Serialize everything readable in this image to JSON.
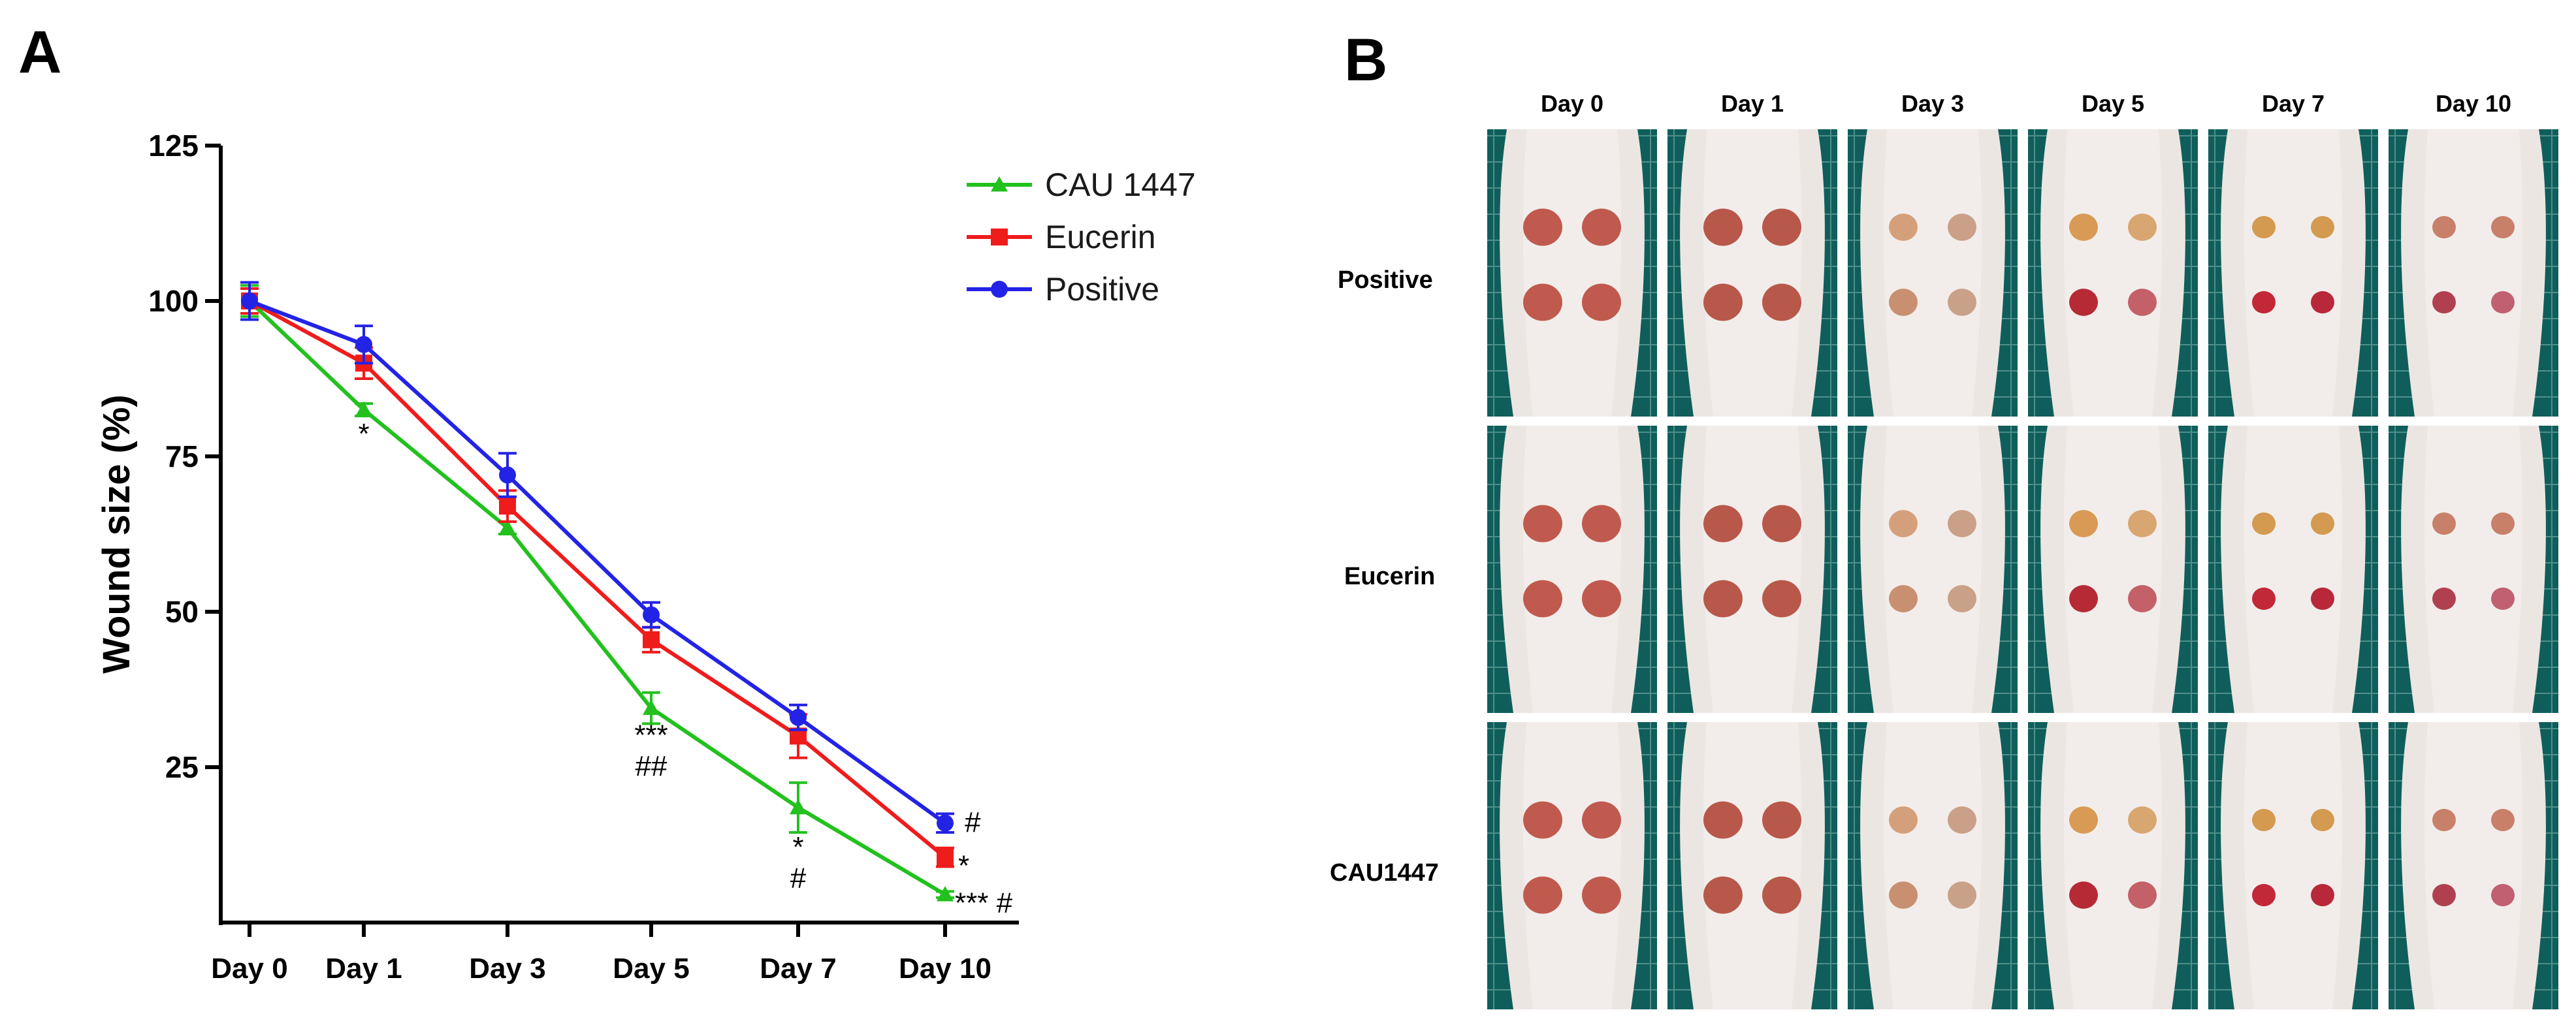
{
  "panel_a_label": "A",
  "panel_b_label": "B",
  "chart_data": {
    "type": "line",
    "title": "",
    "xlabel": "",
    "ylabel": "Wound size (%)",
    "categories": [
      "Day 0",
      "Day 1",
      "Day 3",
      "Day 5",
      "Day 7",
      "Day 10"
    ],
    "ylim": [
      0,
      125
    ],
    "yticks": [
      25,
      50,
      75,
      100,
      125
    ],
    "legend_position": "top-right",
    "series": [
      {
        "name": "CAU 1447",
        "color": "#22c11e",
        "marker": "triangle",
        "values": [
          100,
          82.5,
          63.5,
          34.5,
          18.5,
          4.5
        ],
        "errors": [
          2.5,
          1.0,
          1.0,
          2.5,
          4.0,
          0.5
        ]
      },
      {
        "name": "Eucerin",
        "color": "#ef1c1c",
        "marker": "square",
        "values": [
          100,
          90,
          67,
          45.5,
          30,
          10.5
        ],
        "errors": [
          2.0,
          2.5,
          2.5,
          2.0,
          3.5,
          1.5
        ]
      },
      {
        "name": "Positive",
        "color": "#2323e6",
        "marker": "circle",
        "values": [
          100,
          93,
          72,
          49.5,
          33,
          16
        ],
        "errors": [
          3.0,
          3.0,
          3.5,
          2.0,
          2.0,
          1.5
        ]
      }
    ],
    "annotations": [
      {
        "category": "Day 1",
        "y": 79,
        "text": "*",
        "anchor": "middle"
      },
      {
        "category": "Day 5",
        "y": 30.5,
        "text": "***",
        "anchor": "middle"
      },
      {
        "category": "Day 5",
        "y": 25.5,
        "text": "##",
        "anchor": "middle"
      },
      {
        "category": "Day 7",
        "y": 12.5,
        "text": "*",
        "anchor": "middle"
      },
      {
        "category": "Day 7",
        "y": 7.5,
        "text": "#",
        "anchor": "middle"
      },
      {
        "category": "Day 10",
        "y": 16.5,
        "text": "#",
        "anchor": "start",
        "dx": 0.3
      },
      {
        "category": "Day 10",
        "y": 9.5,
        "text": "*",
        "anchor": "start",
        "dx": 0.2
      },
      {
        "category": "Day 10",
        "y": 3.5,
        "text": "*** #",
        "anchor": "start",
        "dx": 0.15
      }
    ]
  },
  "photo_panel": {
    "columns": [
      "Day 0",
      "Day 1",
      "Day 3",
      "Day 5",
      "Day 7",
      "Day 10"
    ],
    "rows": [
      "Positive",
      "Eucerin",
      "CAU1447"
    ]
  }
}
